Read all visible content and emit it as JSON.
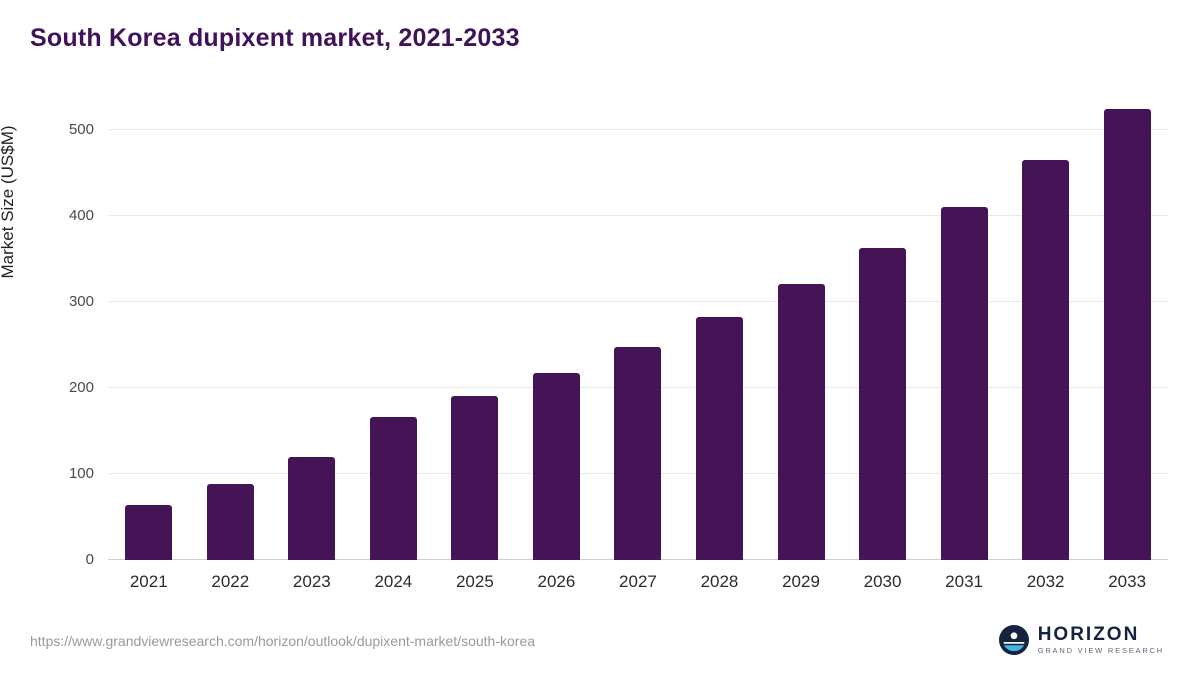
{
  "title": "South Korea dupixent market, 2021-2033",
  "footer": {
    "source_url": "https://www.grandviewresearch.com/horizon/outlook/dupixent-market/south-korea"
  },
  "brand": {
    "name": "HORIZON",
    "subtitle": "GRAND VIEW RESEARCH"
  },
  "colors": {
    "bar": "#451457",
    "title": "#40125a",
    "gridline": "#e8e8e8",
    "baseline": "#cfcfcf",
    "logo_navy": "#15233f",
    "logo_blue": "#41b6e6"
  },
  "chart_data": {
    "type": "bar",
    "title": "South Korea dupixent market, 2021-2033",
    "categories": [
      "2021",
      "2022",
      "2023",
      "2024",
      "2025",
      "2026",
      "2027",
      "2028",
      "2029",
      "2030",
      "2031",
      "2032",
      "2033"
    ],
    "values": [
      64,
      88,
      120,
      166,
      191,
      218,
      248,
      282,
      321,
      363,
      411,
      465,
      525
    ],
    "xlabel": "",
    "ylabel": "Market Size (US$M)",
    "ylim": [
      0,
      500
    ],
    "yticks": [
      0,
      100,
      200,
      300,
      400,
      500
    ],
    "grid": true,
    "legend": false,
    "bar_color": "#451457"
  }
}
